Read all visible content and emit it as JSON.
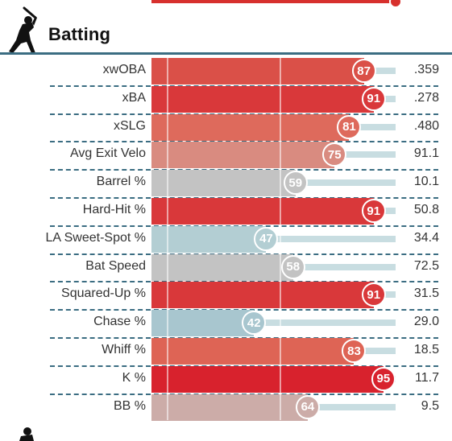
{
  "section": {
    "title": "Batting",
    "icon": "batter-icon",
    "next_icon": "pitcher-icon"
  },
  "rows": [
    {
      "label": "xwOBA",
      "percentile": 87,
      "value": ".359",
      "color": "#da5048"
    },
    {
      "label": "xBA",
      "percentile": 91,
      "value": ".278",
      "color": "#d9383a"
    },
    {
      "label": "xSLG",
      "percentile": 81,
      "value": ".480",
      "color": "#de6a5c"
    },
    {
      "label": "Avg Exit Velo",
      "percentile": 75,
      "value": "91.1",
      "color": "#d98b80"
    },
    {
      "label": "Barrel %",
      "percentile": 59,
      "value": "10.1",
      "color": "#c3c3c3"
    },
    {
      "label": "Hard-Hit %",
      "percentile": 91,
      "value": "50.8",
      "color": "#d9383a"
    },
    {
      "label": "LA Sweet-Spot %",
      "percentile": 47,
      "value": "34.4",
      "color": "#b3ced3"
    },
    {
      "label": "Bat Speed",
      "percentile": 58,
      "value": "72.5",
      "color": "#c3c3c3"
    },
    {
      "label": "Squared-Up %",
      "percentile": 91,
      "value": "31.5",
      "color": "#d9383a"
    },
    {
      "label": "Chase %",
      "percentile": 42,
      "value": "29.0",
      "color": "#a8c6cf"
    },
    {
      "label": "Whiff %",
      "percentile": 83,
      "value": "18.5",
      "color": "#de6455"
    },
    {
      "label": "K %",
      "percentile": 95,
      "value": "11.7",
      "color": "#d8222d"
    },
    {
      "label": "BB %",
      "percentile": 64,
      "value": "9.5",
      "color": "#ccaca8"
    }
  ]
}
